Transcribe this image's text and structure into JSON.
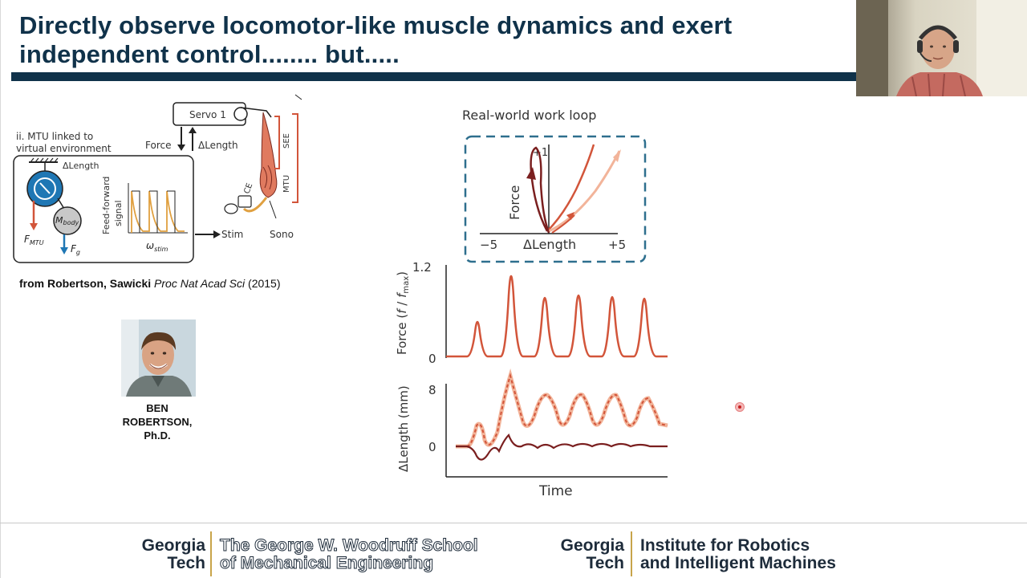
{
  "slide": {
    "title": "Directly observe locomotor-like muscle dynamics and exert independent control........ but....."
  },
  "left_figure": {
    "panel_label_line1": "ii. MTU linked to",
    "panel_label_line2": "virtual environment",
    "servo_label": "Servo 1",
    "force_label": "Force",
    "delta_length_label": "ΔLength",
    "delta_length_top": "ΔLength",
    "feed_forward_line1": "Feed-forward",
    "feed_forward_line2": "signal",
    "omega_label": "ω",
    "omega_sub": "stim",
    "mbody_label": "M",
    "mbody_sub": "body",
    "fmtu_label": "F",
    "fmtu_sub": "MTU",
    "fg_label": "F",
    "fg_sub": "g",
    "see_label": "SEE",
    "mtu_label": "MTU",
    "ce_label": "CE",
    "stim_label": "Stim",
    "sono_label": "Sono",
    "colors": {
      "wheel": "#1f77b4",
      "mass": "#c8c8c8",
      "signal": "#e0a040",
      "muscle": "#e07a5f",
      "bracket": "#d2553a",
      "force_arrow": "#d2553a",
      "gravity_arrow": "#1f77b4"
    }
  },
  "citation": {
    "prefix": "from Robertson, Sawicki ",
    "journal": "Proc Nat Acad Sci",
    "year": " (2015)"
  },
  "person": {
    "name_line1": "BEN",
    "name_line2": "ROBERTSON,",
    "name_line3": "Ph.D."
  },
  "right_figure": {
    "inset_title": "Real-world work loop",
    "inset_ylabel": "Force",
    "inset_xlabel": "ΔLength",
    "inset_y_tick": "+1",
    "inset_x_tick_min": "−5",
    "inset_x_tick_max": "+5",
    "force_ylabel_main": "Force (",
    "force_ylabel_f": "f",
    "force_ylabel_slash": " / ",
    "force_ylabel_fmax": "f",
    "force_ylabel_fmax_sub": "max",
    "force_ylabel_end": ")",
    "force_tick_top": "1.2",
    "force_tick_bottom": "0",
    "length_ylabel": "ΔLength (mm)",
    "length_tick_top": "8",
    "length_tick_bottom": "0",
    "time_label": "Time",
    "colors": {
      "dark_trace": "#7a1f1f",
      "mid_trace": "#d2553a",
      "light_trace": "#f2b49a",
      "dash_box": "#2e6f8e"
    }
  },
  "footer": {
    "brand1_line1": "Georgia",
    "brand1_line2": "Tech",
    "school1_line1": "The George W. Woodruff School",
    "school1_line2": "of Mechanical Engineering",
    "brand2_line1": "Georgia",
    "brand2_line2": "Tech",
    "school2_line1": "Institute for Robotics",
    "school2_line2": "and Intelligent Machines",
    "colors": {
      "navy": "#1d2b3a",
      "gold": "#c8a44a"
    }
  }
}
